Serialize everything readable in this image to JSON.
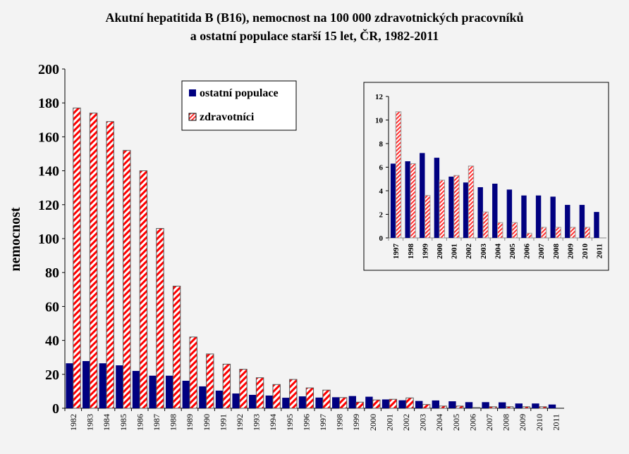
{
  "chart_data": [
    {
      "type": "bar",
      "title": "Akutní hepatitida B (B16), nemocnost na 100 000 zdravotnických pracovníků",
      "subtitle": "a ostatní populace starší 15 let, ČR, 1982-2011",
      "xlabel": "",
      "ylabel": "nemocnost",
      "ylim": [
        0,
        200
      ],
      "yticks": [
        "0",
        "20",
        "40",
        "60",
        "80",
        "100",
        "120",
        "140",
        "160",
        "180",
        "200"
      ],
      "legend": "top-center",
      "categories": [
        "1982",
        "1983",
        "1984",
        "1985",
        "1986",
        "1987",
        "1988",
        "1989",
        "1990",
        "1991",
        "1992",
        "1993",
        "1994",
        "1995",
        "1996",
        "1997",
        "1998",
        "1999",
        "2000",
        "2001",
        "2002",
        "2003",
        "2004",
        "2005",
        "2006",
        "2007",
        "2008",
        "2009",
        "2010",
        "2011"
      ],
      "series": [
        {
          "name": "ostatní populace",
          "color": "#000080",
          "values": [
            26.5,
            27.8,
            26.5,
            25.3,
            22,
            19.2,
            19.2,
            16.2,
            12.9,
            10.4,
            8.7,
            7.9,
            7.5,
            6.2,
            7,
            6.3,
            6.5,
            7.2,
            6.8,
            5.2,
            4.7,
            4.3,
            4.6,
            4.1,
            3.6,
            3.6,
            3.5,
            2.8,
            2.8,
            2.2
          ]
        },
        {
          "name": "zdravotníci",
          "color": "#ff0000",
          "values": [
            177,
            174,
            169,
            152,
            140,
            106,
            72,
            42,
            32,
            26,
            23,
            18,
            14,
            17,
            12,
            10.7,
            6.3,
            3.6,
            4.9,
            5.3,
            6.1,
            2.2,
            1.3,
            1.3,
            0.4,
            0.9,
            0.9,
            0.9,
            0.9,
            null
          ]
        }
      ]
    },
    {
      "type": "bar",
      "title": "",
      "ylim": [
        0,
        12
      ],
      "yticks": [
        "0",
        "2",
        "4",
        "6",
        "8",
        "10",
        "12"
      ],
      "categories": [
        "1997",
        "1998",
        "1999",
        "2000",
        "2001",
        "2002",
        "2003",
        "2004",
        "2005",
        "2006",
        "2007",
        "2008",
        "2009",
        "2010",
        "2011"
      ],
      "series": [
        {
          "name": "ostatní populace",
          "color": "#000080",
          "values": [
            6.3,
            6.5,
            7.2,
            6.8,
            5.2,
            4.7,
            4.3,
            4.6,
            4.1,
            3.6,
            3.6,
            3.5,
            2.8,
            2.8,
            2.2
          ]
        },
        {
          "name": "zdravotníci",
          "color": "#ff0000",
          "values": [
            10.7,
            6.3,
            3.6,
            4.9,
            5.3,
            6.1,
            2.2,
            1.3,
            1.3,
            0.4,
            0.9,
            0.9,
            0.9,
            0.9,
            null
          ]
        }
      ]
    }
  ]
}
